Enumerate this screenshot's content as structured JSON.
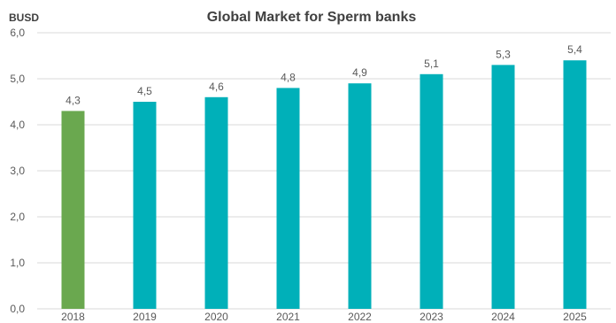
{
  "chart_data": {
    "type": "bar",
    "title": "Global Market for Sperm banks",
    "ylabel": "BUSD",
    "xlabel": "",
    "categories": [
      "2018",
      "2019",
      "2020",
      "2021",
      "2022",
      "2023",
      "2024",
      "2025"
    ],
    "values": [
      4.3,
      4.5,
      4.6,
      4.8,
      4.9,
      5.1,
      5.3,
      5.4
    ],
    "data_labels": [
      "4,3",
      "4,5",
      "4,6",
      "4,8",
      "4,9",
      "5,1",
      "5,3",
      "5,4"
    ],
    "ylim": [
      0,
      6
    ],
    "yticks": [
      0,
      1,
      2,
      3,
      4,
      5,
      6
    ],
    "ytick_labels": [
      "0,0",
      "1,0",
      "2,0",
      "3,0",
      "4,0",
      "5,0",
      "6,0"
    ],
    "grid": true,
    "legend": "none",
    "colors": {
      "highlight": "#6aa84f",
      "bars": "#00b0b9",
      "highlight_categories": [
        "2018"
      ]
    }
  }
}
